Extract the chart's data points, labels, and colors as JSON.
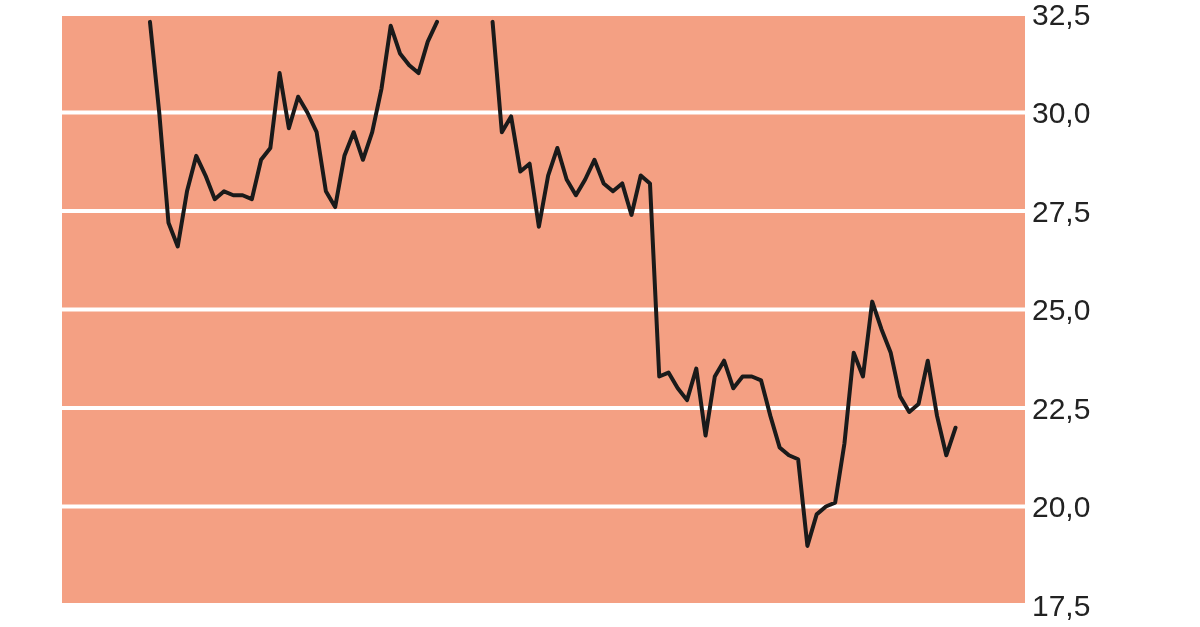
{
  "chart_data": {
    "type": "line",
    "categories": [
      null,
      null,
      null,
      null,
      null,
      null,
      null,
      null,
      null,
      null,
      null,
      null,
      null,
      null,
      null,
      null,
      null,
      null,
      null,
      null,
      null,
      null,
      null,
      null,
      null,
      null,
      null,
      null,
      null,
      null,
      null,
      null,
      null,
      null,
      null,
      null,
      null,
      null,
      null,
      null,
      null,
      null,
      null,
      null,
      null,
      null,
      null,
      null,
      null,
      null,
      null,
      null,
      null,
      null,
      null,
      null,
      null,
      null,
      null,
      null,
      null,
      null,
      null,
      null,
      null,
      null,
      null,
      null,
      null,
      null,
      null,
      null,
      null,
      null,
      null,
      null,
      null,
      null,
      null,
      null,
      null,
      null,
      null,
      null,
      null,
      null,
      null,
      null,
      null,
      null,
      null,
      null,
      null,
      null,
      null,
      null,
      null,
      null,
      null,
      null,
      null,
      null,
      null,
      null
    ],
    "series": [
      {
        "color": "#1a1a1a",
        "values": [
          null,
          null,
          null,
          null,
          null,
          null,
          null,
          null,
          null,
          32.3,
          30.0,
          27.2,
          26.6,
          28.0,
          28.9,
          28.4,
          27.8,
          28.0,
          27.9,
          27.9,
          27.8,
          28.8,
          29.1,
          31.0,
          29.6,
          30.4,
          30.0,
          29.5,
          28.0,
          27.6,
          28.9,
          29.5,
          28.8,
          29.5,
          30.6,
          32.2,
          31.5,
          31.2,
          31.0,
          31.8,
          32.3,
          null,
          null,
          null,
          null,
          null,
          32.3,
          29.5,
          29.9,
          28.5,
          28.7,
          27.1,
          28.4,
          29.1,
          28.3,
          27.9,
          28.3,
          28.8,
          28.2,
          28.0,
          28.2,
          27.4,
          28.4,
          28.2,
          23.3,
          23.4,
          23.0,
          22.7,
          23.5,
          21.8,
          23.3,
          23.7,
          23.0,
          23.3,
          23.3,
          23.2,
          22.3,
          21.5,
          21.3,
          21.2,
          19.0,
          19.8,
          20.0,
          20.1,
          21.6,
          23.9,
          23.3,
          25.2,
          24.5,
          23.9,
          22.8,
          22.4,
          22.6,
          23.7,
          22.3,
          21.3,
          22.0,
          null,
          null,
          null,
          null,
          null,
          null,
          null
        ]
      }
    ],
    "ylim": [
      17.5,
      32.5
    ],
    "yticks": [
      {
        "value": 17.5,
        "label": "17,5"
      },
      {
        "value": 20,
        "label": "20,0"
      },
      {
        "value": 22.5,
        "label": "22,5"
      },
      {
        "value": 25,
        "label": "25,0"
      },
      {
        "value": 27.5,
        "label": "27,5"
      },
      {
        "value": 30,
        "label": "30,0"
      },
      {
        "value": 32.5,
        "label": "32,5"
      }
    ],
    "grid": "y",
    "tick_labels": "y",
    "marker": "none",
    "line_style": "solid"
  }
}
